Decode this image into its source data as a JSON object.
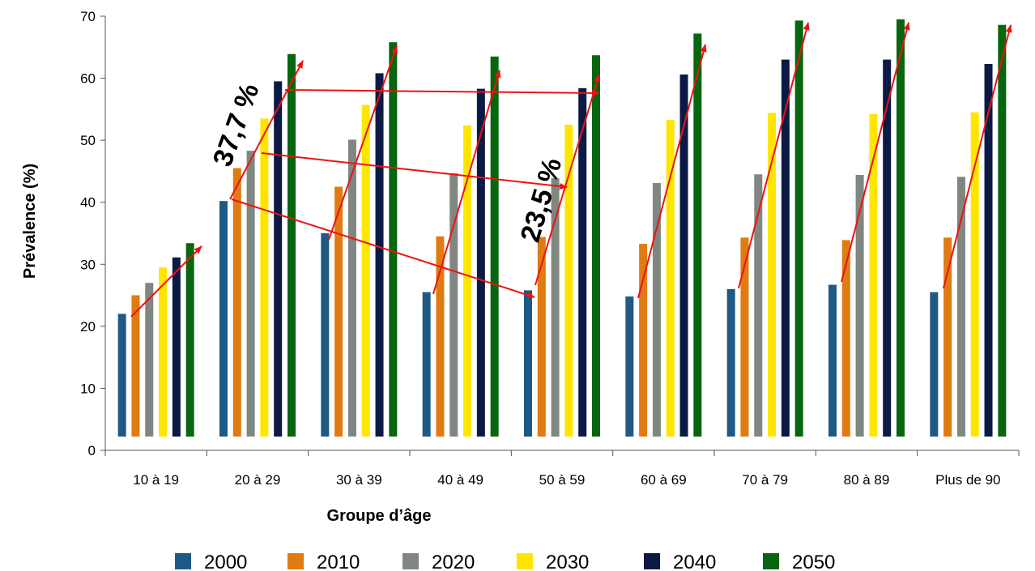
{
  "chart_data": {
    "type": "bar",
    "xlabel": "Groupe d’âge",
    "ylabel": "Prévalence (%)",
    "ylim": [
      0,
      70
    ],
    "yticks": [
      "0",
      "10",
      "20",
      "30",
      "40",
      "50",
      "60",
      "70"
    ],
    "categories": [
      "10 à 19",
      "20 à 29",
      "30 à 39",
      "40 à 49",
      "50 à 59",
      "60 à 69",
      "70 à 79",
      "80 à 89",
      "Plus de 90"
    ],
    "series": [
      {
        "name": "2000",
        "color": "#1F5A85",
        "values": [
          22.0,
          40.2,
          35.0,
          25.5,
          25.8,
          24.8,
          26.0,
          26.7,
          25.5
        ]
      },
      {
        "name": "2010",
        "color": "#E07B12",
        "values": [
          25.0,
          45.5,
          42.5,
          34.5,
          34.4,
          33.3,
          34.3,
          33.9,
          34.3
        ]
      },
      {
        "name": "2020",
        "color": "#7F8780",
        "values": [
          27.0,
          48.3,
          50.1,
          44.7,
          43.9,
          43.1,
          44.5,
          44.4,
          44.1
        ]
      },
      {
        "name": "2030",
        "color": "#FFE500",
        "values": [
          29.5,
          53.5,
          55.7,
          52.4,
          52.5,
          53.3,
          54.4,
          54.2,
          54.5
        ]
      },
      {
        "name": "2040",
        "color": "#0B1A45",
        "values": [
          31.1,
          59.5,
          60.8,
          58.3,
          58.4,
          60.6,
          63.0,
          63.0,
          62.3
        ]
      },
      {
        "name": "2050",
        "color": "#07660F",
        "values": [
          33.4,
          63.9,
          65.8,
          63.5,
          63.7,
          67.2,
          69.3,
          69.5,
          68.6
        ]
      }
    ],
    "annotations": [
      "37,7 %",
      "23,5 %"
    ],
    "arrow_color": "#EE1111",
    "legend": "bottom",
    "grid": false
  }
}
